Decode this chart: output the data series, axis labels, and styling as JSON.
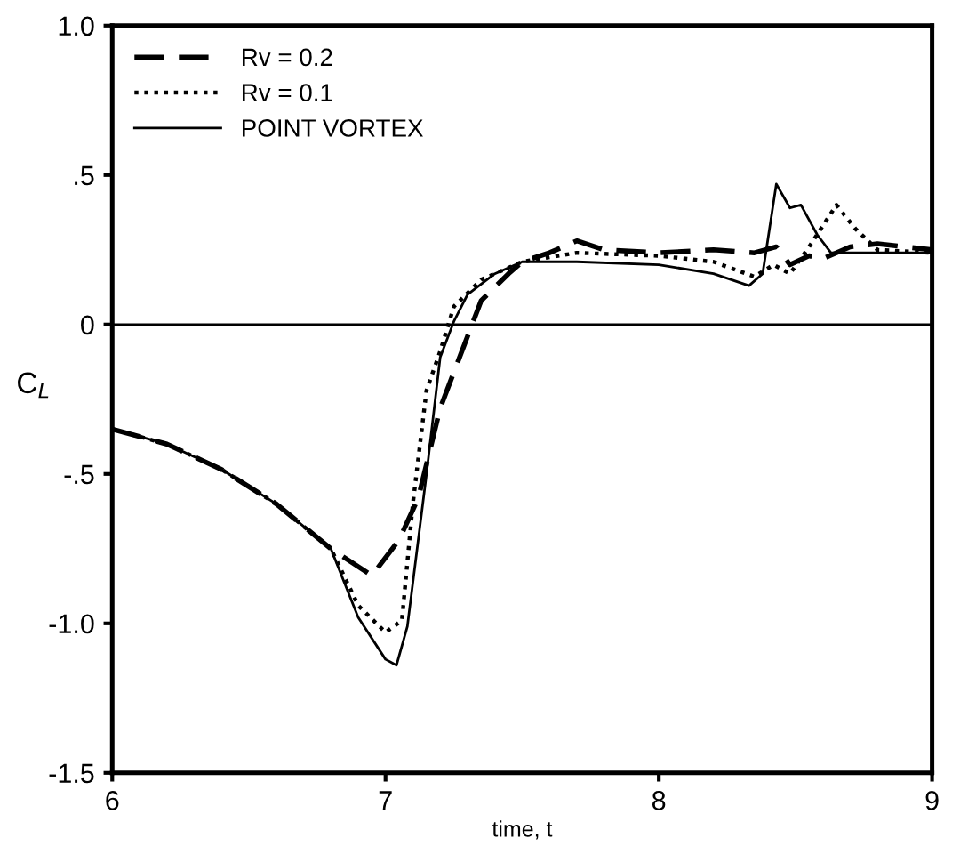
{
  "chart_data": {
    "type": "line",
    "xlabel": "time, t",
    "ylabel": "C$_{L}$",
    "xlim": [
      6,
      9
    ],
    "xticks": [
      6,
      7,
      8,
      9
    ],
    "ylim": [
      -1.5,
      1.0
    ],
    "yticks": [
      {
        "value": 1.0,
        "label": "1.0"
      },
      {
        "value": 0.5,
        "label": ".5"
      },
      0,
      {
        "value": -0.5,
        "label": "-.5"
      },
      {
        "value": -1.0,
        "label": "-1.0"
      },
      {
        "value": -1.5,
        "label": "-1.5"
      }
    ],
    "grid": false,
    "legend": "top left",
    "marker": "none",
    "ref_lines": [
      {
        "axis": "y",
        "value": 0,
        "label": null,
        "color": "#000000",
        "line_style": "solid"
      }
    ],
    "series": [
      {
        "name": "Rv = 0.2",
        "color": "#000000",
        "line_style": "dashed",
        "x": [
          6,
          6.2,
          6.4,
          6.6,
          6.8,
          6.95,
          7.05,
          7.12,
          7.2,
          7.3,
          7.35,
          7.45,
          7.5,
          7.6,
          7.7,
          7.8,
          8.0,
          8.2,
          8.35,
          8.43,
          8.48,
          8.55,
          8.6,
          8.7,
          8.8,
          9.0
        ],
        "values": [
          -0.35,
          -0.4,
          -0.485,
          -0.6,
          -0.75,
          -0.84,
          -0.72,
          -0.58,
          -0.28,
          -0.04,
          0.08,
          0.17,
          0.21,
          0.24,
          0.28,
          0.25,
          0.24,
          0.25,
          0.24,
          0.26,
          0.2,
          0.23,
          0.22,
          0.26,
          0.27,
          0.25
        ]
      },
      {
        "name": "Rv = 0.1",
        "color": "#000000",
        "line_style": "dotted",
        "x": [
          6,
          6.2,
          6.4,
          6.6,
          6.8,
          6.9,
          7.0,
          7.06,
          7.1,
          7.15,
          7.2,
          7.25,
          7.35,
          7.5,
          7.7,
          8.0,
          8.2,
          8.35,
          8.42,
          8.48,
          8.55,
          8.65,
          8.72,
          8.8,
          9.0
        ],
        "values": [
          -0.35,
          -0.4,
          -0.485,
          -0.6,
          -0.75,
          -0.94,
          -1.03,
          -0.99,
          -0.6,
          -0.22,
          -0.09,
          0.06,
          0.15,
          0.21,
          0.24,
          0.23,
          0.21,
          0.16,
          0.2,
          0.17,
          0.26,
          0.4,
          0.32,
          0.25,
          0.24
        ]
      },
      {
        "name": "POINT VORTEX",
        "color": "#000000",
        "line_style": "solid",
        "x": [
          6,
          6.2,
          6.4,
          6.6,
          6.8,
          6.9,
          7.0,
          7.04,
          7.08,
          7.15,
          7.2,
          7.25,
          7.3,
          7.4,
          7.5,
          7.7,
          8.0,
          8.2,
          8.33,
          8.38,
          8.43,
          8.48,
          8.52,
          8.58,
          8.63,
          9.0
        ],
        "values": [
          -0.35,
          -0.4,
          -0.485,
          -0.6,
          -0.75,
          -0.98,
          -1.12,
          -1.14,
          -1.01,
          -0.5,
          -0.11,
          0.01,
          0.1,
          0.17,
          0.21,
          0.21,
          0.2,
          0.17,
          0.13,
          0.17,
          0.47,
          0.39,
          0.4,
          0.3,
          0.24,
          0.24
        ]
      }
    ]
  }
}
